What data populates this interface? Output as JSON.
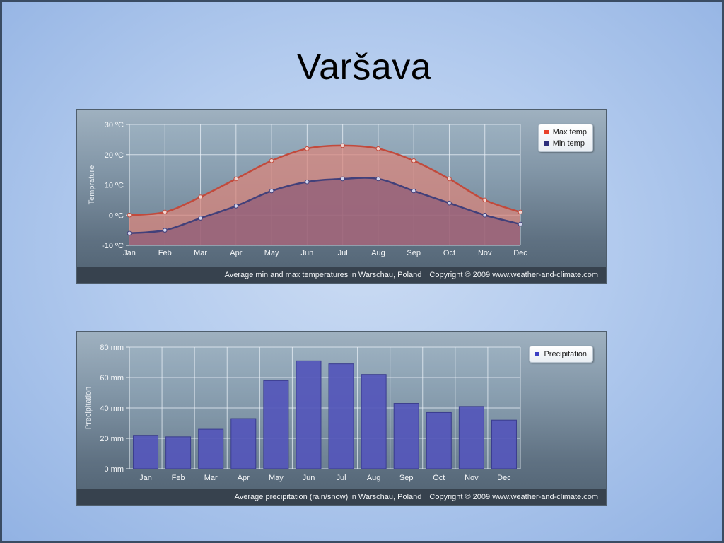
{
  "slide": {
    "title": "Varšava"
  },
  "colors": {
    "max_line": "#c24a3c",
    "max_fill": "#d8857c",
    "min_line": "#42407a",
    "min_fill": "#8b5a78",
    "bar": "#5456ba",
    "legend_max": "#e8412a",
    "legend_min": "#2d2f7c",
    "legend_precip": "#3b3fc4"
  },
  "temperature_chart": {
    "footer_text": "Average min and max temperatures in Warschau, Poland",
    "copyright": "Copyright © 2009 www.weather-and-climate.com",
    "legend": {
      "max": "Max temp",
      "min": "Min temp"
    }
  },
  "precipitation_chart": {
    "footer_text": "Average precipitation (rain/snow) in Warschau, Poland",
    "copyright": "Copyright © 2009 www.weather-and-climate.com",
    "legend": {
      "precip": "Precipitation"
    }
  },
  "chart_data": [
    {
      "type": "area",
      "categories": [
        "Jan",
        "Feb",
        "Mar",
        "Apr",
        "May",
        "Jun",
        "Jul",
        "Aug",
        "Sep",
        "Oct",
        "Nov",
        "Dec"
      ],
      "series": [
        {
          "name": "Max temp",
          "values": [
            0,
            1,
            6,
            12,
            18,
            22,
            23,
            22,
            18,
            12,
            5,
            1
          ]
        },
        {
          "name": "Min temp",
          "values": [
            -6,
            -5,
            -1,
            3,
            8,
            11,
            12,
            12,
            8,
            4,
            0,
            -3
          ]
        }
      ],
      "ylabel": "Temprature",
      "ylim": [
        -10,
        30
      ],
      "yticks": [
        -10,
        0,
        10,
        20,
        30
      ],
      "ytick_labels": [
        "-10 ºC",
        "0 ºC",
        "10 ºC",
        "20 ºC",
        "30 ºC"
      ],
      "grid": true,
      "legend_position": "top-right"
    },
    {
      "type": "bar",
      "categories": [
        "Jan",
        "Feb",
        "Mar",
        "Apr",
        "May",
        "Jun",
        "Jul",
        "Aug",
        "Sep",
        "Oct",
        "Nov",
        "Dec"
      ],
      "series": [
        {
          "name": "Precipitation",
          "values": [
            22,
            21,
            26,
            33,
            58,
            71,
            69,
            62,
            43,
            37,
            41,
            32
          ]
        }
      ],
      "ylabel": "Precipitation",
      "ylim": [
        0,
        80
      ],
      "yticks": [
        0,
        20,
        40,
        60,
        80
      ],
      "ytick_labels": [
        "0 mm",
        "20 mm",
        "40 mm",
        "60 mm",
        "80 mm"
      ],
      "grid": true,
      "legend_position": "top-right"
    }
  ]
}
